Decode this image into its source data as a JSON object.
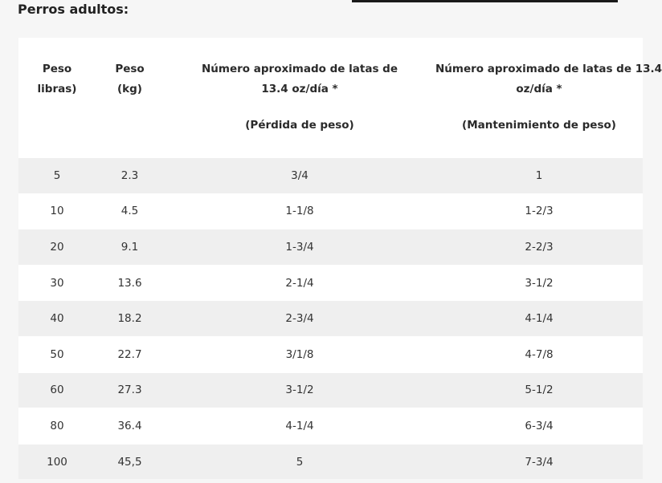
{
  "section_title": "Perros adultos:",
  "table": {
    "headers": [
      {
        "lines": [
          "Peso",
          "libras)"
        ],
        "extra": []
      },
      {
        "lines": [
          "Peso",
          "(kg)"
        ],
        "extra": []
      },
      {
        "lines": [
          "Número aproximado de latas de",
          "13.4 oz/día *"
        ],
        "extra": [
          "(Pérdida de peso)"
        ]
      },
      {
        "lines": [
          "Número aproximado de latas de 13.4",
          "oz/día *"
        ],
        "extra": [
          "(Mantenimiento de peso)"
        ]
      }
    ],
    "rows": [
      [
        "5",
        "2.3",
        "3/4",
        "1"
      ],
      [
        "10",
        "4.5",
        "1-1/8",
        "1-2/3"
      ],
      [
        "20",
        "9.1",
        "1-3/4",
        "2-2/3"
      ],
      [
        "30",
        "13.6",
        "2-1/4",
        "3-1/2"
      ],
      [
        "40",
        "18.2",
        "2-3/4",
        "4-1/4"
      ],
      [
        "50",
        "22.7",
        "3/1/8",
        "4-7/8"
      ],
      [
        "60",
        "27.3",
        "3-1/2",
        "5-1/2"
      ],
      [
        "80",
        "36.4",
        "4-1/4",
        "6-3/4"
      ],
      [
        "100",
        "45,5",
        "5",
        "7-3/4"
      ]
    ]
  },
  "colors": {
    "page_background": "#f6f6f6",
    "table_background": "#ffffff",
    "striped_row": "#efefef",
    "text": "#333333"
  }
}
